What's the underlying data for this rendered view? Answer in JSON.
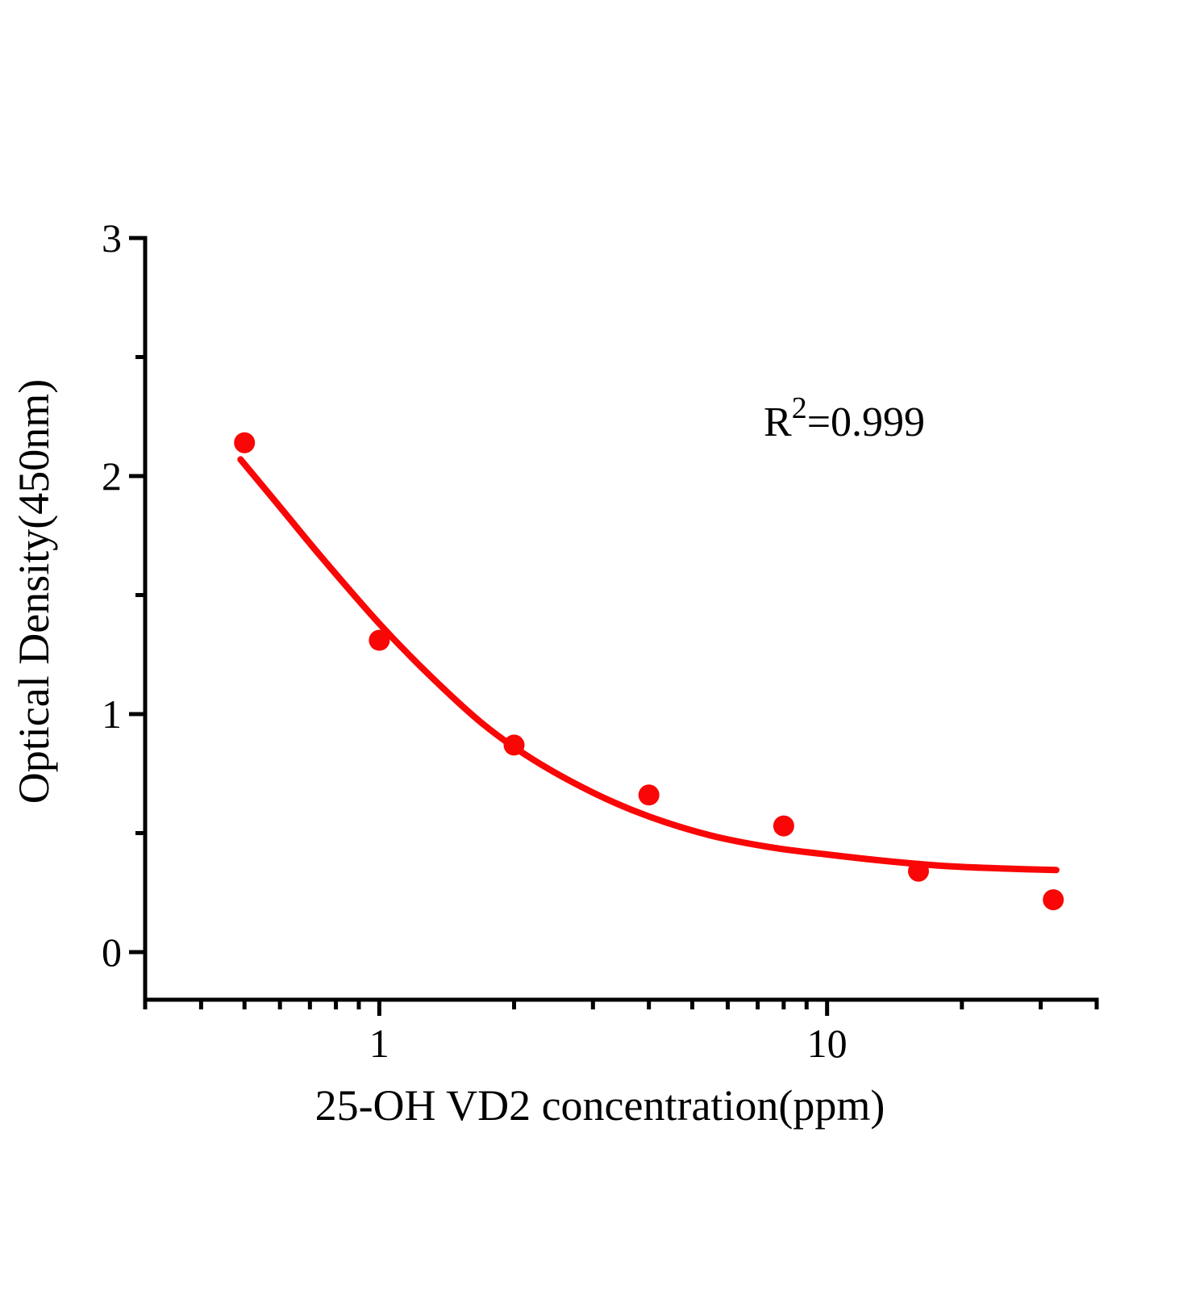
{
  "figure": {
    "background": "#ffffff",
    "axis_color": "#000000",
    "accent_color": "#F90606"
  },
  "annotation": {
    "base": "R",
    "sup": "2",
    "rest": "=0.999",
    "full_text": "R²=0.999"
  },
  "chart_data": {
    "type": "scatter",
    "title": "",
    "xlabel": "25-OH VD2 concentration(ppm)",
    "ylabel": "Optical Density(450nm)",
    "x_scale": "log",
    "y_scale": "linear",
    "xlim": [
      0.3,
      40
    ],
    "ylim": [
      -0.2,
      3
    ],
    "grid": false,
    "legend": "none",
    "x_ticks": {
      "major_values": [
        1,
        10
      ],
      "major_labels": [
        "1",
        "10"
      ],
      "minor_values": [
        0.3,
        0.4,
        0.5,
        0.6,
        0.7,
        0.8,
        0.9,
        2,
        3,
        4,
        5,
        6,
        7,
        8,
        9,
        20,
        30,
        40
      ]
    },
    "y_ticks": {
      "major_values": [
        0,
        1,
        2,
        3
      ],
      "major_labels": [
        "0",
        "1",
        "2",
        "3"
      ],
      "minor_values": [
        0.5,
        1.5,
        2.5
      ]
    },
    "series": [
      {
        "name": "standard-points",
        "plot": "scatter",
        "marker": "filled-circle",
        "color": "#F90606",
        "x": [
          0.5,
          1,
          2,
          4,
          8,
          16,
          32
        ],
        "y": [
          2.14,
          1.31,
          0.87,
          0.66,
          0.53,
          0.34,
          0.22
        ]
      },
      {
        "name": "fit-curve",
        "plot": "line",
        "color": "#F90606",
        "x": [
          0.49,
          0.6,
          0.75,
          1,
          1.3,
          1.7,
          2.2,
          3,
          4,
          5.5,
          7.5,
          10,
          14,
          19,
          26,
          32.5
        ],
        "y": [
          2.07,
          1.87,
          1.65,
          1.38,
          1.16,
          0.96,
          0.81,
          0.67,
          0.57,
          0.49,
          0.44,
          0.41,
          0.38,
          0.36,
          0.35,
          0.345
        ]
      }
    ],
    "annotation_text": "R²=0.999"
  }
}
